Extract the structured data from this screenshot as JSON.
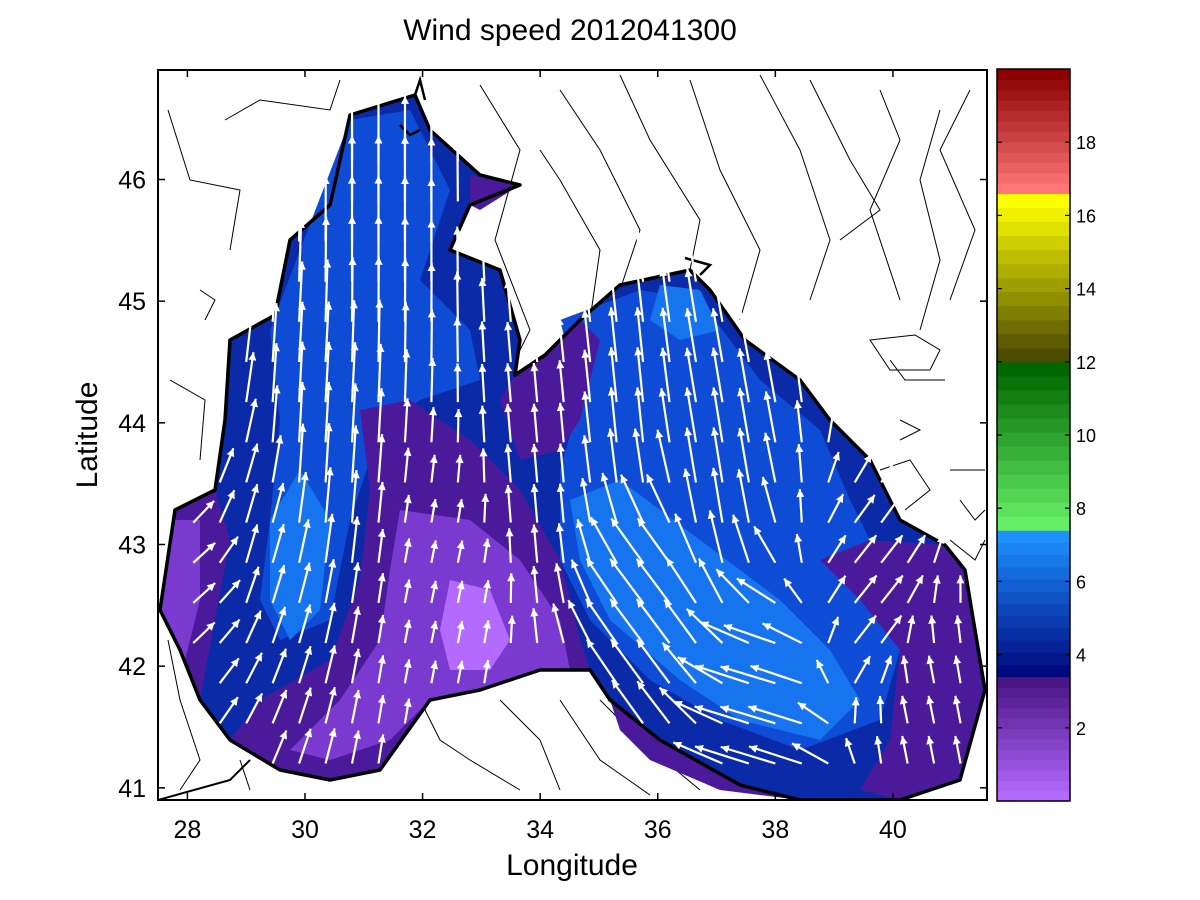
{
  "chart_data": {
    "type": "heatmap",
    "title": "Wind speed 2012041300",
    "xlabel": "Longitude",
    "ylabel": "Latitude",
    "xlim": [
      27.5,
      41.6
    ],
    "ylim": [
      40.9,
      46.9
    ],
    "xticks": [
      28,
      30,
      32,
      34,
      36,
      38,
      40
    ],
    "yticks": [
      41,
      42,
      43,
      44,
      45,
      46
    ],
    "grid": false,
    "colorbar": {
      "range": [
        0,
        20
      ],
      "ticks": [
        2,
        4,
        6,
        8,
        10,
        12,
        14,
        16,
        18
      ],
      "bands": [
        {
          "from": 0,
          "to": 3.4,
          "color_low": "#b469ff",
          "color_high": "#4a1585"
        },
        {
          "from": 3.4,
          "to": 7.4,
          "color_low": "#000a80",
          "color_high": "#1e90ff"
        },
        {
          "from": 7.4,
          "to": 12.0,
          "color_low": "#66ee66",
          "color_high": "#006600"
        },
        {
          "from": 12.0,
          "to": 16.6,
          "color_low": "#4d4d00",
          "color_high": "#ffff00"
        },
        {
          "from": 16.6,
          "to": 20.0,
          "color_low": "#ff7777",
          "color_high": "#8b0000"
        }
      ]
    },
    "field": {
      "description_values": "wind speed (m/s) sampled at representative sea points",
      "points": [
        {
          "lon": 31.5,
          "lat": 46.0,
          "speed": 5.0
        },
        {
          "lon": 30.5,
          "lat": 45.0,
          "speed": 5.3
        },
        {
          "lon": 32.5,
          "lat": 45.0,
          "speed": 5.0
        },
        {
          "lon": 33.5,
          "lat": 44.5,
          "speed": 4.5
        },
        {
          "lon": 30.0,
          "lat": 43.0,
          "speed": 5.8
        },
        {
          "lon": 29.0,
          "lat": 42.5,
          "speed": 4.2
        },
        {
          "lon": 28.2,
          "lat": 42.7,
          "speed": 2.8
        },
        {
          "lon": 32.7,
          "lat": 42.3,
          "speed": 0.8
        },
        {
          "lon": 31.5,
          "lat": 41.5,
          "speed": 2.0
        },
        {
          "lon": 36.0,
          "lat": 42.5,
          "speed": 6.5
        },
        {
          "lon": 37.2,
          "lat": 42.2,
          "speed": 6.8
        },
        {
          "lon": 38.5,
          "lat": 41.8,
          "speed": 5.8
        },
        {
          "lon": 37.5,
          "lat": 44.3,
          "speed": 4.5
        },
        {
          "lon": 36.5,
          "lat": 44.8,
          "speed": 5.2
        },
        {
          "lon": 39.5,
          "lat": 42.7,
          "speed": 3.2
        },
        {
          "lon": 40.3,
          "lat": 42.0,
          "speed": 2.5
        },
        {
          "lon": 35.0,
          "lat": 44.5,
          "speed": 2.8
        }
      ]
    },
    "vectors": {
      "description": "wind direction arrows (white); u,v in m/s",
      "samples": [
        {
          "lon": 31.0,
          "lat": 45.5,
          "u": 0.0,
          "v": 6.0
        },
        {
          "lon": 30.0,
          "lat": 44.0,
          "u": 0.3,
          "v": 5.5
        },
        {
          "lon": 29.0,
          "lat": 43.0,
          "u": 1.0,
          "v": 3.5
        },
        {
          "lon": 28.2,
          "lat": 42.7,
          "u": 2.0,
          "v": 1.8
        },
        {
          "lon": 32.5,
          "lat": 42.5,
          "u": 0.4,
          "v": 2.0
        },
        {
          "lon": 34.0,
          "lat": 43.5,
          "u": -0.3,
          "v": 3.5
        },
        {
          "lon": 35.5,
          "lat": 44.0,
          "u": -0.5,
          "v": 5.0
        },
        {
          "lon": 37.0,
          "lat": 43.5,
          "u": -0.8,
          "v": 5.0
        },
        {
          "lon": 36.0,
          "lat": 42.5,
          "u": -3.0,
          "v": 4.0
        },
        {
          "lon": 38.0,
          "lat": 41.6,
          "u": -5.0,
          "v": 1.5
        },
        {
          "lon": 39.5,
          "lat": 42.5,
          "u": 2.0,
          "v": 2.5
        },
        {
          "lon": 40.5,
          "lat": 41.5,
          "u": -0.5,
          "v": 2.5
        }
      ]
    }
  }
}
